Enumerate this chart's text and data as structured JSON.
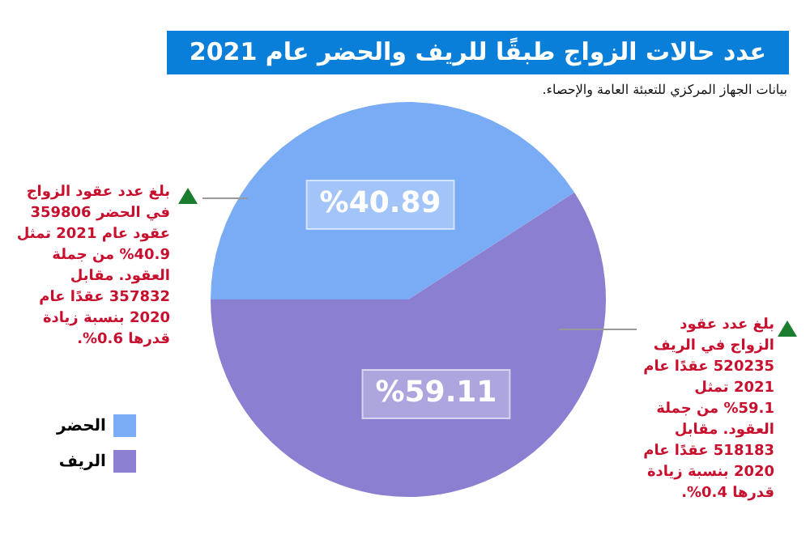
{
  "chart_data": {
    "type": "pie",
    "title": "عدد حالات الزواج طبقًا للريف والحضر عام 2021",
    "subtitle": "بيانات الجهاز المركزي للتعبئة العامة والإحصاء.",
    "categories": [
      "الحضر",
      "الريف"
    ],
    "values": [
      40.89,
      59.11
    ],
    "colors": [
      "#7aabf5",
      "#8a7fd0"
    ],
    "value_labels": [
      "%40.89",
      "%59.11"
    ],
    "legend": "bottom left",
    "annotations": [
      "بلغ عدد عقود الزواج في الحضر 359806 عقود عام 2021 تمثل 40.9% من جملة العقود. مقابل 357832 عقدًا عام 2020 بنسبة زيادة قدرها 0.6%.",
      "بلغ عدد عقود الزواج في الريف 520235 عقدًا عام 2021 تمثل 59.1% من جملة العقود. مقابل 518183 عقدًا عام 2020 بنسبة زيادة قدرها 0.4%."
    ]
  }
}
